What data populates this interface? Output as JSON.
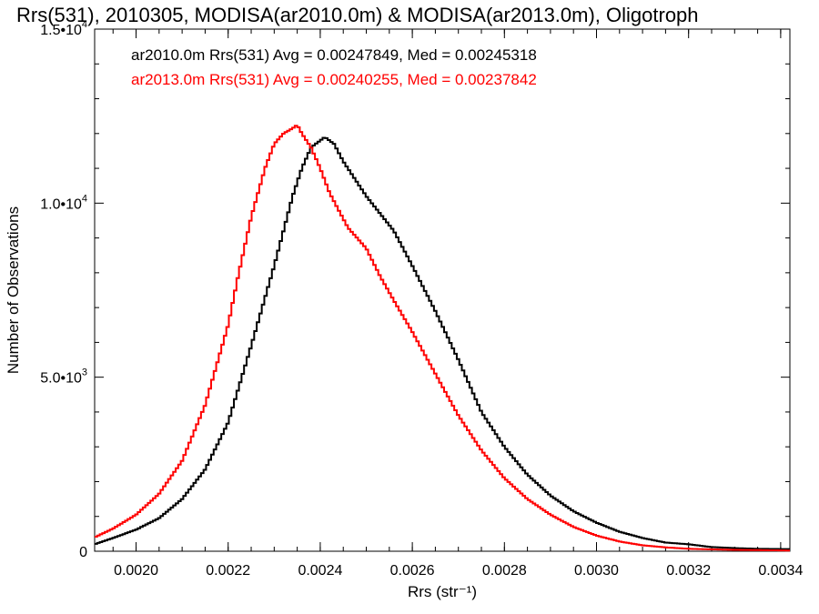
{
  "chart_data": {
    "type": "line",
    "style": "histogram-step",
    "title": "Rrs(531), 2010305, MODISA(ar2010.0m) & MODISA(ar2013.0m), Oligotroph",
    "xlabel": "Rrs (str⁻¹)",
    "ylabel": "Number of Observations",
    "xlim": [
      0.00191,
      0.00342
    ],
    "ylim": [
      0,
      15000
    ],
    "x_ticks": [
      {
        "value": 0.002,
        "label": "0.0020"
      },
      {
        "value": 0.0022,
        "label": "0.0022"
      },
      {
        "value": 0.0024,
        "label": "0.0024"
      },
      {
        "value": 0.0026,
        "label": "0.0026"
      },
      {
        "value": 0.0028,
        "label": "0.0028"
      },
      {
        "value": 0.003,
        "label": "0.0030"
      },
      {
        "value": 0.0032,
        "label": "0.0032"
      },
      {
        "value": 0.0034,
        "label": "0.0034"
      }
    ],
    "y_ticks": [
      {
        "value": 0,
        "mantissa": "0",
        "exponent": ""
      },
      {
        "value": 5000,
        "mantissa": "5.0•10",
        "exponent": "3"
      },
      {
        "value": 10000,
        "mantissa": "1.0•10",
        "exponent": "4"
      },
      {
        "value": 15000,
        "mantissa": "1.5•10",
        "exponent": "4"
      }
    ],
    "grid": false,
    "legend_position": "top-left",
    "series": [
      {
        "name": "ar2010.0m Rrs(531) Avg = 0.00247849, Med = 0.00245318",
        "color": "#000000",
        "x": [
          0.00191,
          0.00195,
          0.002,
          0.00205,
          0.0021,
          0.00215,
          0.0022,
          0.00225,
          0.0023,
          0.00232,
          0.00234,
          0.00236,
          0.00238,
          0.0024,
          0.00241,
          0.00243,
          0.00245,
          0.00248,
          0.0025,
          0.00253,
          0.00256,
          0.0026,
          0.00265,
          0.0027,
          0.00275,
          0.0028,
          0.00285,
          0.0029,
          0.00295,
          0.003,
          0.00305,
          0.0031,
          0.00315,
          0.0032,
          0.00325,
          0.0033,
          0.00335,
          0.00342
        ],
        "values": [
          200,
          380,
          620,
          950,
          1500,
          2350,
          3700,
          5900,
          8200,
          9200,
          10200,
          11000,
          11600,
          11800,
          11900,
          11700,
          11200,
          10600,
          10200,
          9700,
          9200,
          8200,
          6900,
          5500,
          4000,
          3000,
          2200,
          1600,
          1150,
          820,
          560,
          380,
          250,
          200,
          120,
          90,
          70,
          60
        ]
      },
      {
        "name": "ar2013.0m Rrs(531) Avg = 0.00240255, Med = 0.00237842",
        "color": "#ff0000",
        "x": [
          0.00191,
          0.00195,
          0.002,
          0.00205,
          0.0021,
          0.00215,
          0.0022,
          0.00222,
          0.00225,
          0.00228,
          0.0023,
          0.00232,
          0.00234,
          0.00235,
          0.00236,
          0.00238,
          0.0024,
          0.00242,
          0.00244,
          0.00246,
          0.00248,
          0.0025,
          0.00253,
          0.00256,
          0.0026,
          0.00265,
          0.0027,
          0.00275,
          0.0028,
          0.00285,
          0.0029,
          0.00295,
          0.003,
          0.00305,
          0.0031,
          0.00315,
          0.0032,
          0.0033,
          0.00342
        ],
        "values": [
          400,
          650,
          1050,
          1650,
          2600,
          4200,
          6500,
          7800,
          9600,
          11000,
          11700,
          12000,
          12150,
          12250,
          12000,
          11600,
          11000,
          10300,
          9800,
          9300,
          9000,
          8700,
          7900,
          7200,
          6300,
          5100,
          3900,
          2900,
          2100,
          1500,
          1050,
          700,
          450,
          280,
          170,
          110,
          70,
          40,
          20
        ]
      }
    ]
  }
}
